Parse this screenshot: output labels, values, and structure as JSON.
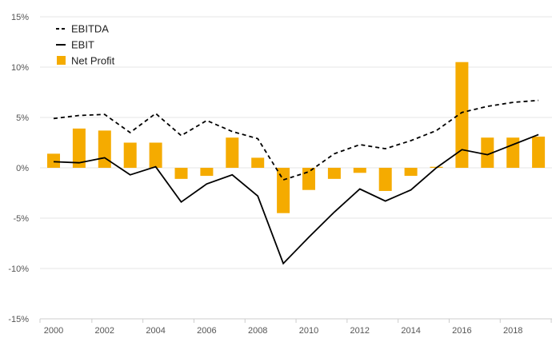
{
  "chart_data": {
    "type": "bar",
    "x": [
      2000,
      2001,
      2002,
      2003,
      2004,
      2005,
      2006,
      2007,
      2008,
      2009,
      2010,
      2011,
      2012,
      2013,
      2014,
      2015,
      2016,
      2017,
      2018,
      2019
    ],
    "x_tick_labels": [
      "2000",
      "2002",
      "2004",
      "2006",
      "2008",
      "2010",
      "2012",
      "2014",
      "2016",
      "2018"
    ],
    "y_tick_labels": [
      "15%",
      "10%",
      "5%",
      "0%",
      "-5%",
      "-10%",
      "-15%"
    ],
    "ylim": [
      -15,
      15
    ],
    "y_ticks": [
      15,
      10,
      5,
      0,
      -5,
      -10,
      -15
    ],
    "grid": true,
    "legend_position": "top-left",
    "series": [
      {
        "name": "EBITDA",
        "kind": "line",
        "style": "dashed",
        "color": "#000000",
        "values": [
          4.9,
          5.2,
          5.3,
          3.5,
          5.4,
          3.2,
          4.7,
          3.6,
          2.9,
          -1.2,
          -0.4,
          1.4,
          2.3,
          1.9,
          2.7,
          3.7,
          5.5,
          6.1,
          6.5,
          6.7
        ]
      },
      {
        "name": "EBIT",
        "kind": "line",
        "style": "solid",
        "color": "#000000",
        "values": [
          0.6,
          0.5,
          1.0,
          -0.7,
          0.1,
          -3.4,
          -1.6,
          -0.7,
          -2.8,
          -9.5,
          -6.9,
          -4.4,
          -2.1,
          -3.3,
          -2.2,
          0.0,
          1.8,
          1.3,
          2.3,
          3.3
        ]
      },
      {
        "name": "Net Profit",
        "kind": "bar",
        "color": "#f5ab00",
        "values": [
          1.4,
          3.9,
          3.7,
          2.5,
          2.5,
          -1.1,
          -0.8,
          3.0,
          1.0,
          -4.5,
          -2.2,
          -1.1,
          -0.5,
          -2.3,
          -0.8,
          0.1,
          10.5,
          3.0,
          3.0,
          3.1
        ]
      }
    ]
  }
}
